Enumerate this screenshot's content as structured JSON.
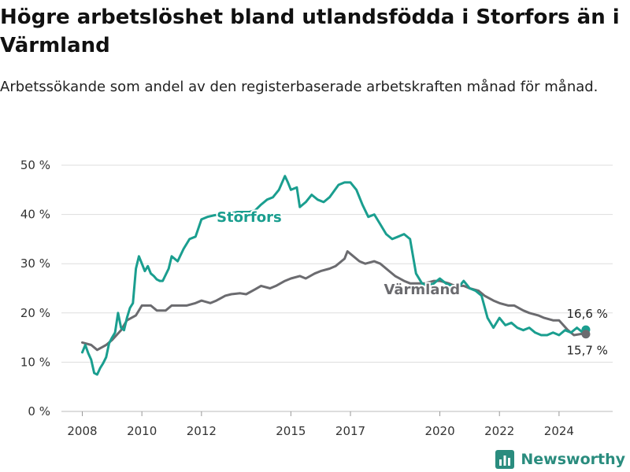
{
  "header": {
    "title": "Högre arbetslöshet bland utlandsfödda i Storfors än i Värmland",
    "subtitle": "Arbetssökande som andel av den registerbaserade arbetskraften månad för månad."
  },
  "brand": {
    "name": "Newsworthy",
    "icon": "bar-chart-logo-icon"
  },
  "colors": {
    "storfors": "#1a9e8f",
    "varmland": "#6b6b6f",
    "grid": "#dddddd",
    "axis_text": "#333333"
  },
  "chart_data": {
    "type": "line",
    "title": "",
    "xlabel": "",
    "ylabel": "",
    "xlim": [
      2007.3,
      2025.8
    ],
    "ylim": [
      0,
      50
    ],
    "y_ticks": [
      {
        "value": 0,
        "label": "0 %"
      },
      {
        "value": 10,
        "label": "10 %"
      },
      {
        "value": 20,
        "label": "20 %"
      },
      {
        "value": 30,
        "label": "30 %"
      },
      {
        "value": 40,
        "label": "40 %"
      },
      {
        "value": 50,
        "label": "50 %"
      }
    ],
    "x_ticks": [
      {
        "value": 2008,
        "label": "2008"
      },
      {
        "value": 2010,
        "label": "2010"
      },
      {
        "value": 2012,
        "label": "2012"
      },
      {
        "value": 2015,
        "label": "2015"
      },
      {
        "value": 2017,
        "label": "2017"
      },
      {
        "value": 2020,
        "label": "2020"
      },
      {
        "value": 2022,
        "label": "2022"
      },
      {
        "value": 2024,
        "label": "2024"
      }
    ],
    "grid": "horizontal",
    "legend": "inline labels",
    "series": [
      {
        "name": "Storfors",
        "end_label": "16,6 %",
        "x": [
          2008.0,
          2008.1,
          2008.2,
          2008.3,
          2008.4,
          2008.5,
          2008.6,
          2008.7,
          2008.8,
          2008.9,
          2009.0,
          2009.1,
          2009.2,
          2009.3,
          2009.4,
          2009.5,
          2009.6,
          2009.7,
          2009.8,
          2009.9,
          2010.0,
          2010.1,
          2010.2,
          2010.3,
          2010.4,
          2010.5,
          2010.6,
          2010.7,
          2010.9,
          2011.0,
          2011.2,
          2011.4,
          2011.6,
          2011.8,
          2012.0,
          2012.2,
          2012.4,
          2012.6,
          2012.8,
          2013.0,
          2013.2,
          2013.4,
          2013.6,
          2013.8,
          2014.0,
          2014.2,
          2014.4,
          2014.6,
          2014.8,
          2014.9,
          2015.0,
          2015.2,
          2015.3,
          2015.5,
          2015.7,
          2015.9,
          2016.1,
          2016.3,
          2016.6,
          2016.8,
          2017.0,
          2017.2,
          2017.4,
          2017.6,
          2017.8,
          2018.0,
          2018.2,
          2018.4,
          2018.6,
          2018.8,
          2019.0,
          2019.2,
          2019.4,
          2019.6,
          2019.8,
          2020.0,
          2020.2,
          2020.4,
          2020.6,
          2020.8,
          2021.0,
          2021.2,
          2021.4,
          2021.6,
          2021.8,
          2022.0,
          2022.2,
          2022.4,
          2022.6,
          2022.8,
          2023.0,
          2023.2,
          2023.4,
          2023.6,
          2023.8,
          2024.0,
          2024.2,
          2024.4,
          2024.6,
          2024.8,
          2024.9
        ],
        "values": [
          12.0,
          13.5,
          11.8,
          10.5,
          7.8,
          7.5,
          8.8,
          9.8,
          11.0,
          13.8,
          15.0,
          16.0,
          20.0,
          17.0,
          16.5,
          19.0,
          21.0,
          22.0,
          29.0,
          31.5,
          30.0,
          28.5,
          29.5,
          28.0,
          27.5,
          26.8,
          26.5,
          26.5,
          29.0,
          31.5,
          30.5,
          33.0,
          35.0,
          35.5,
          39.0,
          39.5,
          39.8,
          40.0,
          39.8,
          40.2,
          40.5,
          40.5,
          40.5,
          40.8,
          42.0,
          43.0,
          43.5,
          45.0,
          47.8,
          46.5,
          45.0,
          45.5,
          41.5,
          42.5,
          44.0,
          43.0,
          42.5,
          43.5,
          46.0,
          46.5,
          46.5,
          45.0,
          42.0,
          39.5,
          40.0,
          38.0,
          36.0,
          35.0,
          35.5,
          36.0,
          35.0,
          28.0,
          26.0,
          25.5,
          26.0,
          27.0,
          26.0,
          25.5,
          25.0,
          26.5,
          25.0,
          24.5,
          23.5,
          19.0,
          17.0,
          19.0,
          17.5,
          18.0,
          17.0,
          16.5,
          17.0,
          16.0,
          15.5,
          15.5,
          16.0,
          15.5,
          16.5,
          16.0,
          17.0,
          16.0,
          16.6
        ]
      },
      {
        "name": "Värmland",
        "end_label": "15,7 %",
        "x": [
          2008.0,
          2008.3,
          2008.5,
          2008.8,
          2009.0,
          2009.3,
          2009.5,
          2009.8,
          2010.0,
          2010.3,
          2010.5,
          2010.8,
          2011.0,
          2011.3,
          2011.5,
          2011.8,
          2012.0,
          2012.3,
          2012.5,
          2012.8,
          2013.0,
          2013.3,
          2013.5,
          2013.8,
          2014.0,
          2014.3,
          2014.5,
          2014.8,
          2015.0,
          2015.3,
          2015.5,
          2015.8,
          2016.0,
          2016.3,
          2016.5,
          2016.8,
          2016.9,
          2017.0,
          2017.3,
          2017.5,
          2017.8,
          2018.0,
          2018.3,
          2018.5,
          2018.8,
          2019.0,
          2019.3,
          2019.5,
          2019.8,
          2020.0,
          2020.3,
          2020.5,
          2020.8,
          2021.0,
          2021.3,
          2021.5,
          2021.8,
          2022.0,
          2022.3,
          2022.5,
          2022.8,
          2023.0,
          2023.3,
          2023.5,
          2023.8,
          2024.0,
          2024.3,
          2024.5,
          2024.8,
          2024.9
        ],
        "values": [
          14.0,
          13.5,
          12.5,
          13.5,
          14.5,
          16.5,
          18.5,
          19.5,
          21.5,
          21.5,
          20.5,
          20.5,
          21.5,
          21.5,
          21.5,
          22.0,
          22.5,
          22.0,
          22.5,
          23.5,
          23.8,
          24.0,
          23.8,
          24.8,
          25.5,
          25.0,
          25.5,
          26.5,
          27.0,
          27.5,
          27.0,
          28.0,
          28.5,
          29.0,
          29.5,
          31.0,
          32.5,
          32.0,
          30.5,
          30.0,
          30.5,
          30.0,
          28.5,
          27.5,
          26.5,
          26.0,
          26.0,
          26.0,
          26.5,
          26.5,
          26.0,
          25.5,
          25.5,
          25.0,
          24.5,
          23.5,
          22.5,
          22.0,
          21.5,
          21.5,
          20.5,
          20.0,
          19.5,
          19.0,
          18.5,
          18.5,
          16.5,
          15.5,
          15.8,
          15.7
        ]
      }
    ],
    "annotations": [
      {
        "text": "Storfors",
        "x": 2013.6,
        "y": 38.5,
        "series": "Storfors"
      },
      {
        "text": "Värmland",
        "x": 2019.4,
        "y": 23.8,
        "series": "Värmland"
      }
    ]
  }
}
